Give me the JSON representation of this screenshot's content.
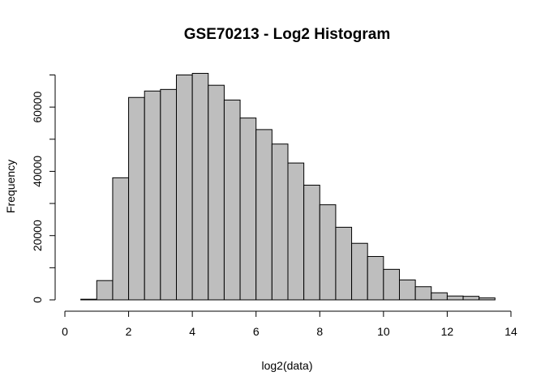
{
  "chart_data": {
    "type": "bar",
    "title": "GSE70213 - Log2 Histogram",
    "xlabel": "log2(data)",
    "ylabel": "Frequency",
    "xlim": [
      0,
      14
    ],
    "ylim": [
      0,
      70000
    ],
    "x_ticks": [
      "0",
      "2",
      "4",
      "6",
      "8",
      "10",
      "12",
      "14"
    ],
    "y_ticks": [
      "0",
      "20000",
      "40000",
      "60000"
    ],
    "bin_width": 0.5,
    "bins": [
      {
        "x0": 0.5,
        "x1": 1.0,
        "value": 200
      },
      {
        "x0": 1.0,
        "x1": 1.5,
        "value": 6000
      },
      {
        "x0": 1.5,
        "x1": 2.0,
        "value": 38000
      },
      {
        "x0": 2.0,
        "x1": 2.5,
        "value": 63000
      },
      {
        "x0": 2.5,
        "x1": 3.0,
        "value": 65000
      },
      {
        "x0": 3.0,
        "x1": 3.5,
        "value": 65500
      },
      {
        "x0": 3.5,
        "x1": 4.0,
        "value": 70000
      },
      {
        "x0": 4.0,
        "x1": 4.5,
        "value": 70500
      },
      {
        "x0": 4.5,
        "x1": 5.0,
        "value": 66800
      },
      {
        "x0": 5.0,
        "x1": 5.5,
        "value": 62200
      },
      {
        "x0": 5.5,
        "x1": 6.0,
        "value": 56600
      },
      {
        "x0": 6.0,
        "x1": 6.5,
        "value": 53000
      },
      {
        "x0": 6.5,
        "x1": 7.0,
        "value": 48500
      },
      {
        "x0": 7.0,
        "x1": 7.5,
        "value": 42600
      },
      {
        "x0": 7.5,
        "x1": 8.0,
        "value": 35700
      },
      {
        "x0": 8.0,
        "x1": 8.5,
        "value": 29600
      },
      {
        "x0": 8.5,
        "x1": 9.0,
        "value": 22600
      },
      {
        "x0": 9.0,
        "x1": 9.5,
        "value": 17600
      },
      {
        "x0": 9.5,
        "x1": 10.0,
        "value": 13500
      },
      {
        "x0": 10.0,
        "x1": 10.5,
        "value": 9500
      },
      {
        "x0": 10.5,
        "x1": 11.0,
        "value": 6200
      },
      {
        "x0": 11.0,
        "x1": 11.5,
        "value": 4100
      },
      {
        "x0": 11.5,
        "x1": 12.0,
        "value": 2200
      },
      {
        "x0": 12.0,
        "x1": 12.5,
        "value": 1200
      },
      {
        "x0": 12.5,
        "x1": 13.0,
        "value": 1100
      },
      {
        "x0": 13.0,
        "x1": 13.5,
        "value": 600
      }
    ],
    "bar_color": "#bebebe",
    "border_color": "#000000",
    "grid": false
  }
}
